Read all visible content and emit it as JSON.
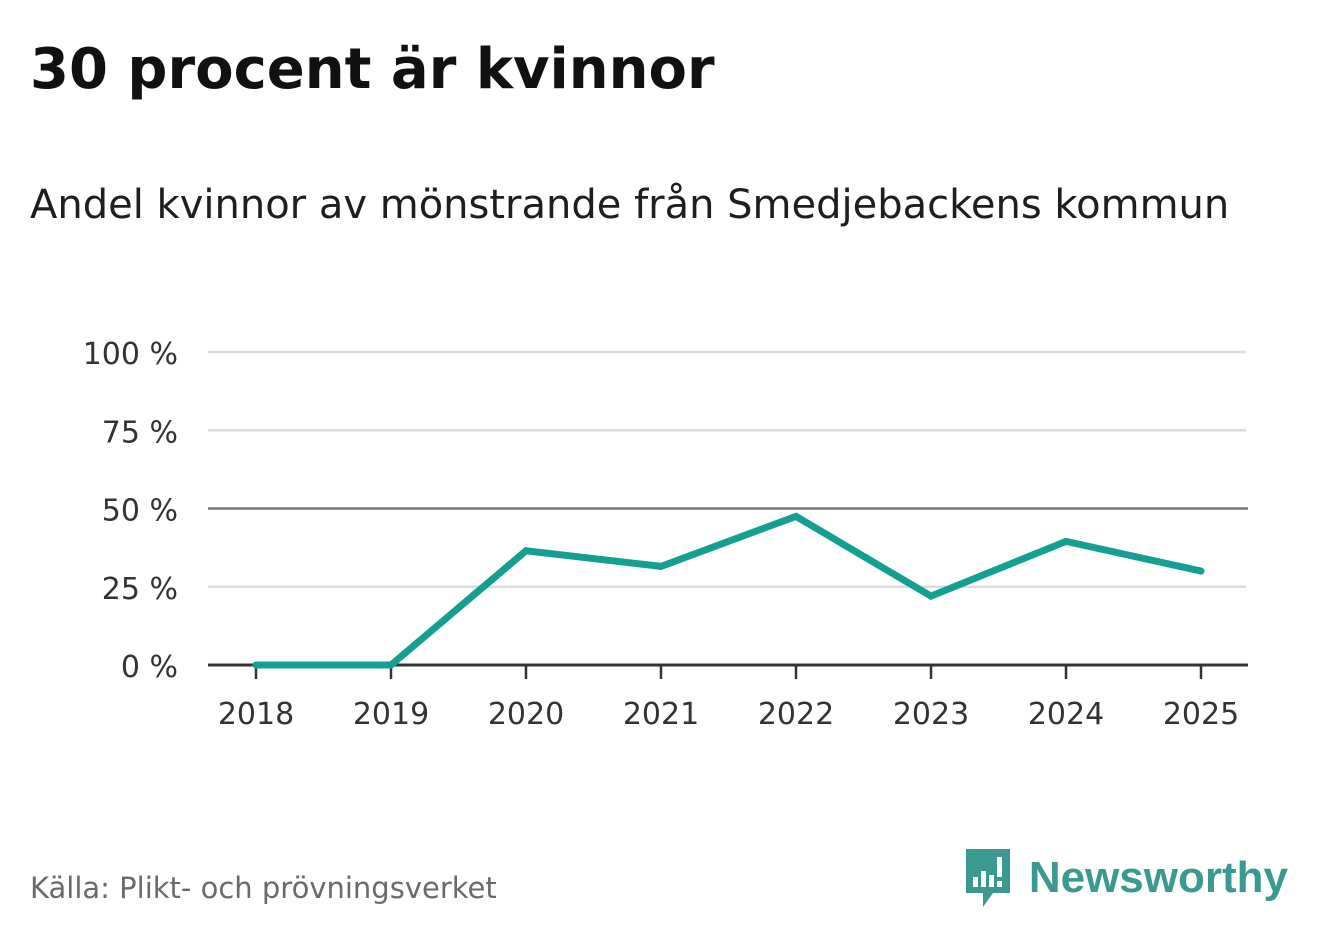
{
  "header": {
    "title": "30 procent är kvinnor",
    "subtitle": "Andel kvinnor av mönstrande från Smedjebackens kommun"
  },
  "footer": {
    "source": "Källa: Plikt- och prövningsverket",
    "brand": "Newsworthy",
    "brand_icon": "newsworthy-logo-icon"
  },
  "colors": {
    "line": "#13a093",
    "grid": "#dcdcdc",
    "reference": "#777777",
    "axis": "#333333",
    "brand": "#3a9a92"
  },
  "chart_data": {
    "type": "line",
    "title": "30 procent är kvinnor",
    "subtitle": "Andel kvinnor av mönstrande från Smedjebackens kommun",
    "x": [
      "2018",
      "2019",
      "2020",
      "2021",
      "2022",
      "2023",
      "2024",
      "2025"
    ],
    "series": [
      {
        "values": [
          0,
          0,
          36.5,
          31.5,
          47.5,
          22,
          39.5,
          30
        ]
      }
    ],
    "yticks": [
      0,
      25,
      50,
      75,
      100
    ],
    "ytick_labels": [
      "0 %",
      "25 %",
      "50 %",
      "75 %",
      "100 %"
    ],
    "ylim": [
      0,
      100
    ],
    "reference_line": 50,
    "grid": true,
    "legend": "none",
    "xlabel": "",
    "ylabel": ""
  }
}
